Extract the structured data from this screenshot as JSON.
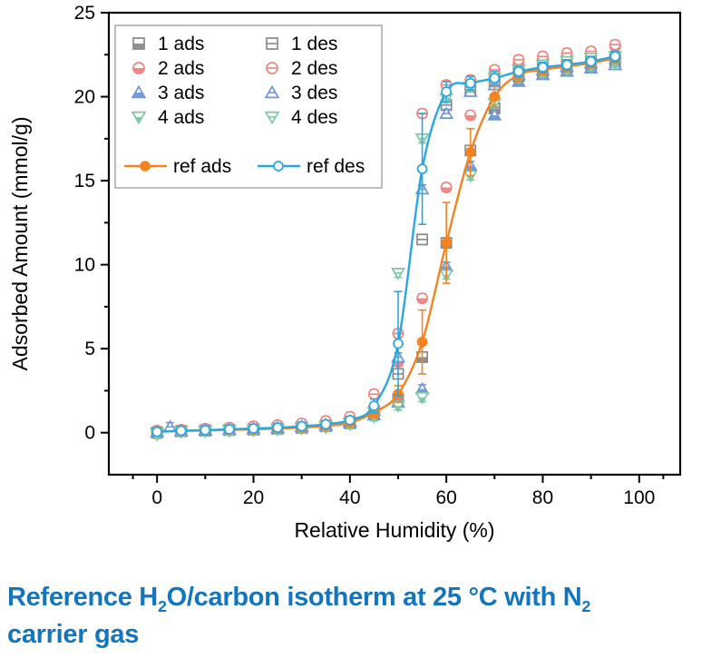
{
  "caption": {
    "color": "#1375BD",
    "lines": [
      [
        {
          "text": "Reference H"
        },
        {
          "text": "2",
          "sub": true
        },
        {
          "text": "O/carbon isotherm at 25 °C with N"
        },
        {
          "text": "2",
          "sub": true
        }
      ],
      [
        {
          "text": "carrier gas"
        }
      ]
    ]
  },
  "chart_data": {
    "type": "scatter",
    "title": "",
    "xlabel": "Relative Humidity (%)",
    "ylabel": "Adsorbed Amount (mmol/g)",
    "xlim": [
      -10,
      108.5
    ],
    "ylim": [
      -2.5,
      25
    ],
    "grid": false,
    "x_major_ticks": [
      0,
      20,
      40,
      60,
      80,
      100
    ],
    "x_minor_ticks": [
      -5,
      10,
      30,
      50,
      70,
      90,
      105
    ],
    "y_major_ticks": [
      0,
      5,
      10,
      15,
      20,
      25
    ],
    "y_minor_ticks": [
      2.5,
      7.5,
      12.5,
      17.5,
      22.5
    ],
    "x": [
      0,
      5,
      10,
      15,
      20,
      25,
      30,
      35,
      40,
      45,
      50,
      55,
      60,
      65,
      70,
      75,
      80,
      85,
      90,
      95
    ],
    "series": [
      {
        "name": "1 ads",
        "marker": "square",
        "style": "half",
        "color": "#8a8a8a",
        "line": false,
        "err": 0.25,
        "y": [
          0.02,
          0.08,
          0.12,
          0.15,
          0.18,
          0.22,
          0.28,
          0.38,
          0.55,
          1.1,
          2.0,
          4.5,
          11.3,
          16.8,
          19.3,
          21.2,
          21.5,
          21.7,
          21.9,
          22.1
        ]
      },
      {
        "name": "1 des",
        "marker": "square",
        "style": "openline",
        "color": "#8a8a8a",
        "line": false,
        "err": 0.25,
        "y": [
          0.0,
          0.1,
          0.14,
          0.18,
          0.22,
          0.28,
          0.35,
          0.45,
          0.65,
          1.3,
          3.5,
          11.5,
          19.5,
          20.4,
          20.9,
          21.5,
          21.8,
          22.0,
          22.2,
          22.3
        ]
      },
      {
        "name": "2 ads",
        "marker": "circle",
        "style": "half",
        "color": "#F0837F",
        "line": false,
        "err": 0.25,
        "y": [
          0.1,
          0.15,
          0.2,
          0.25,
          0.3,
          0.38,
          0.45,
          0.55,
          0.8,
          1.5,
          4.2,
          8.0,
          14.6,
          18.9,
          21.3,
          22.0,
          22.2,
          22.4,
          22.6,
          23.0
        ]
      },
      {
        "name": "2 des",
        "marker": "circle",
        "style": "openline",
        "color": "#F0837F",
        "line": false,
        "err": 0.25,
        "y": [
          0.12,
          0.18,
          0.24,
          0.3,
          0.38,
          0.45,
          0.55,
          0.7,
          0.95,
          2.3,
          5.9,
          19.0,
          20.7,
          21.0,
          21.6,
          22.2,
          22.4,
          22.6,
          22.7,
          23.1
        ]
      },
      {
        "name": "3 ads",
        "marker": "triup",
        "style": "half",
        "color": "#6E97D8",
        "line": false,
        "err": 0.25,
        "y": [
          0.05,
          0.1,
          0.14,
          0.18,
          0.22,
          0.27,
          0.33,
          0.42,
          0.6,
          1.05,
          1.8,
          2.6,
          9.9,
          15.9,
          18.9,
          20.9,
          21.3,
          21.5,
          21.7,
          21.9
        ]
      },
      {
        "name": "3 des",
        "marker": "triup",
        "style": "openline",
        "color": "#6E97D8",
        "line": false,
        "err": 0.25,
        "x": [
          2.7,
          5,
          10,
          15,
          20,
          25,
          30,
          35,
          40,
          45,
          50,
          55,
          60,
          65,
          70,
          75,
          80,
          85,
          90,
          95
        ],
        "y": [
          0.35,
          0.12,
          0.16,
          0.2,
          0.25,
          0.3,
          0.38,
          0.48,
          0.68,
          1.35,
          4.5,
          14.5,
          19.0,
          20.3,
          20.7,
          21.3,
          21.6,
          21.8,
          22.0,
          21.9
        ]
      },
      {
        "name": "4 ads",
        "marker": "tridown",
        "style": "half",
        "color": "#7DC8A2",
        "line": false,
        "err": 0.25,
        "y": [
          -0.05,
          0.05,
          0.08,
          0.1,
          0.14,
          0.18,
          0.24,
          0.32,
          0.5,
          0.95,
          1.6,
          2.1,
          9.4,
          15.3,
          19.6,
          21.1,
          21.4,
          21.6,
          21.8,
          22.0
        ]
      },
      {
        "name": "4 des",
        "marker": "tridown",
        "style": "openline",
        "color": "#7DC8A2",
        "line": false,
        "err": 0.25,
        "y": [
          -0.1,
          0.05,
          0.1,
          0.13,
          0.17,
          0.22,
          0.28,
          0.38,
          0.58,
          1.2,
          9.5,
          17.5,
          19.9,
          20.6,
          21.1,
          21.6,
          21.9,
          22.1,
          22.3,
          22.4
        ]
      },
      {
        "name": "ref ads",
        "marker": "circle",
        "style": "filled",
        "color": "#F5821F",
        "line": true,
        "y": [
          0.05,
          0.1,
          0.13,
          0.17,
          0.2,
          0.25,
          0.3,
          0.4,
          0.6,
          1.2,
          2.3,
          5.4,
          11.3,
          16.7,
          20.0,
          21.3,
          21.6,
          21.8,
          22.0,
          22.3
        ],
        "err": [
          0.1,
          0.1,
          0.1,
          0.1,
          0.1,
          0.1,
          0.1,
          0.15,
          0.2,
          0.3,
          0.5,
          1.9,
          2.4,
          1.4,
          0.6,
          0.4,
          0.3,
          0.3,
          0.3,
          0.3
        ]
      },
      {
        "name": "ref des",
        "marker": "circle",
        "style": "open",
        "color": "#29A7E1",
        "line": true,
        "y": [
          0.05,
          0.12,
          0.15,
          0.2,
          0.25,
          0.3,
          0.38,
          0.5,
          0.75,
          1.6,
          5.3,
          15.7,
          20.3,
          20.8,
          21.1,
          21.5,
          21.75,
          21.9,
          22.1,
          22.4
        ],
        "err": [
          0.1,
          0.1,
          0.1,
          0.1,
          0.1,
          0.1,
          0.1,
          0.15,
          0.2,
          0.4,
          3.1,
          3.3,
          0.6,
          0.4,
          0.4,
          0.3,
          0.3,
          0.3,
          0.3,
          0.3
        ]
      }
    ],
    "legend": {
      "position": "upper-left",
      "marker_items": [
        "1 ads",
        "1 des",
        "2 ads",
        "2 des",
        "3 ads",
        "3 des",
        "4 ads",
        "4 des"
      ],
      "line_items": [
        "ref ads",
        "ref des"
      ]
    }
  }
}
